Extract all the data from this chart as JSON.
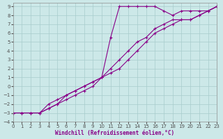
{
  "xlabel": "Windchill (Refroidissement éolien,°C)",
  "background_color": "#cce8e8",
  "grid_color": "#a8cccc",
  "line_color": "#880088",
  "xlim": [
    0,
    23
  ],
  "ylim": [
    -4,
    9.4
  ],
  "xticks": [
    0,
    1,
    2,
    3,
    4,
    5,
    6,
    7,
    8,
    9,
    10,
    11,
    12,
    13,
    14,
    15,
    16,
    17,
    18,
    19,
    20,
    21,
    22,
    23
  ],
  "yticks": [
    -4,
    -3,
    -2,
    -1,
    0,
    1,
    2,
    3,
    4,
    5,
    6,
    7,
    8,
    9
  ],
  "series1_x": [
    0,
    1,
    2,
    3,
    4,
    5,
    6,
    7,
    8,
    9,
    10,
    11,
    12,
    13,
    14,
    15,
    16,
    17,
    18,
    19,
    20,
    21,
    22,
    23
  ],
  "series1_y": [
    -3,
    -3,
    -3,
    -3,
    -2.5,
    -2,
    -1.5,
    -1,
    -0.5,
    0,
    1,
    5.5,
    9,
    9,
    9,
    9,
    9,
    8.5,
    8,
    8.5,
    8.5,
    8.5,
    8.5,
    9
  ],
  "series2_x": [
    0,
    1,
    2,
    3,
    4,
    5,
    6,
    7,
    8,
    9,
    10,
    11,
    12,
    13,
    14,
    15,
    16,
    17,
    18,
    19,
    20,
    21,
    22,
    23
  ],
  "series2_y": [
    -3,
    -3,
    -3,
    -3,
    -2,
    -1.5,
    -1,
    -0.5,
    0,
    0.5,
    1,
    1.5,
    2,
    3,
    4,
    5,
    6,
    6.5,
    7,
    7.5,
    7.5,
    8,
    8.5,
    9
  ],
  "series3_x": [
    0,
    1,
    2,
    3,
    4,
    5,
    6,
    7,
    8,
    9,
    10,
    11,
    12,
    13,
    14,
    15,
    16,
    17,
    18,
    19,
    20,
    21,
    22,
    23
  ],
  "series3_y": [
    -3,
    -3,
    -3,
    -3,
    -2.5,
    -2,
    -1,
    -0.5,
    0,
    0.5,
    1,
    2,
    3,
    4,
    5,
    5.5,
    6.5,
    7,
    7.5,
    7.5,
    7.5,
    8,
    8.5,
    9
  ]
}
